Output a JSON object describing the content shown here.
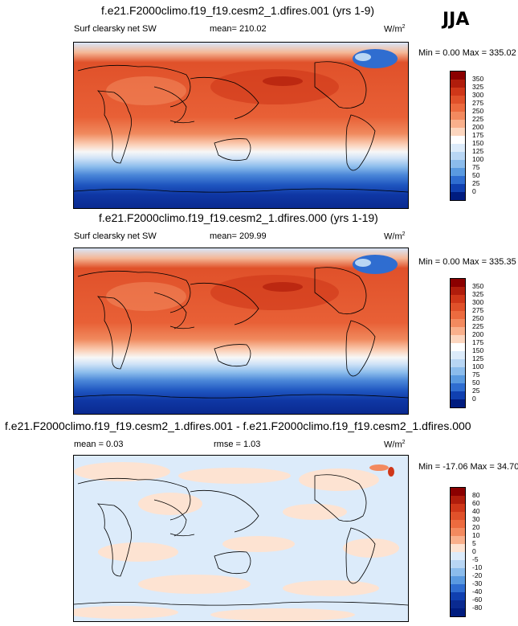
{
  "season": "JJA",
  "panels": [
    {
      "title": "f.e21.F2000climo.f19_f19.cesm2_1.dfires.001 (yrs 1-9)",
      "left_label": "Surf clearsky net SW",
      "center_label": "mean= 210.02",
      "units": "W/m",
      "units_sup": "2",
      "minmax": "Min =   0.00 Max = 335.02",
      "levels": [
        "350",
        "325",
        "300",
        "275",
        "250",
        "225",
        "200",
        "175",
        "150",
        "125",
        "100",
        "75",
        "50",
        "25",
        "0"
      ],
      "colors": [
        "#8b0000",
        "#b01d0c",
        "#cf3719",
        "#e0512a",
        "#ec6b3f",
        "#f38a5f",
        "#f9b08c",
        "#fcd6bf",
        "#ffffff",
        "#dcebfa",
        "#b8d6f4",
        "#8bbcec",
        "#5a9ae0",
        "#2f6dd0",
        "#1040b0",
        "#001c7f"
      ]
    },
    {
      "title": "f.e21.F2000climo.f19_f19.cesm2_1.dfires.000 (yrs 1-19)",
      "left_label": "Surf clearsky net SW",
      "center_label": "mean= 209.99",
      "units": "W/m",
      "units_sup": "2",
      "minmax": "Min =   0.00 Max = 335.35",
      "levels": [
        "350",
        "325",
        "300",
        "275",
        "250",
        "225",
        "200",
        "175",
        "150",
        "125",
        "100",
        "75",
        "50",
        "25",
        "0"
      ],
      "colors": [
        "#8b0000",
        "#b01d0c",
        "#cf3719",
        "#e0512a",
        "#ec6b3f",
        "#f38a5f",
        "#f9b08c",
        "#fcd6bf",
        "#ffffff",
        "#dcebfa",
        "#b8d6f4",
        "#8bbcec",
        "#5a9ae0",
        "#2f6dd0",
        "#1040b0",
        "#001c7f"
      ]
    },
    {
      "title": "f.e21.F2000climo.f19_f19.cesm2_1.dfires.001 - f.e21.F2000climo.f19_f19.cesm2_1.dfires.000",
      "left_label": "mean =   0.03",
      "center_label": "rmse =   1.03",
      "units": "W/m",
      "units_sup": "2",
      "minmax": "Min = -17.06 Max =  34.70",
      "levels": [
        "80",
        "60",
        "40",
        "30",
        "20",
        "10",
        "5",
        "0",
        "-5",
        "-10",
        "-20",
        "-30",
        "-40",
        "-60",
        "-80"
      ],
      "colors": [
        "#8b0000",
        "#b01d0c",
        "#cf3719",
        "#e0512a",
        "#ec6b3f",
        "#f38a5f",
        "#f9b08c",
        "#fde3d2",
        "#dcebfa",
        "#b8d6f4",
        "#8bbcec",
        "#5a9ae0",
        "#2f6dd0",
        "#1040b0",
        "#0a2a90",
        "#001c7f"
      ]
    }
  ]
}
